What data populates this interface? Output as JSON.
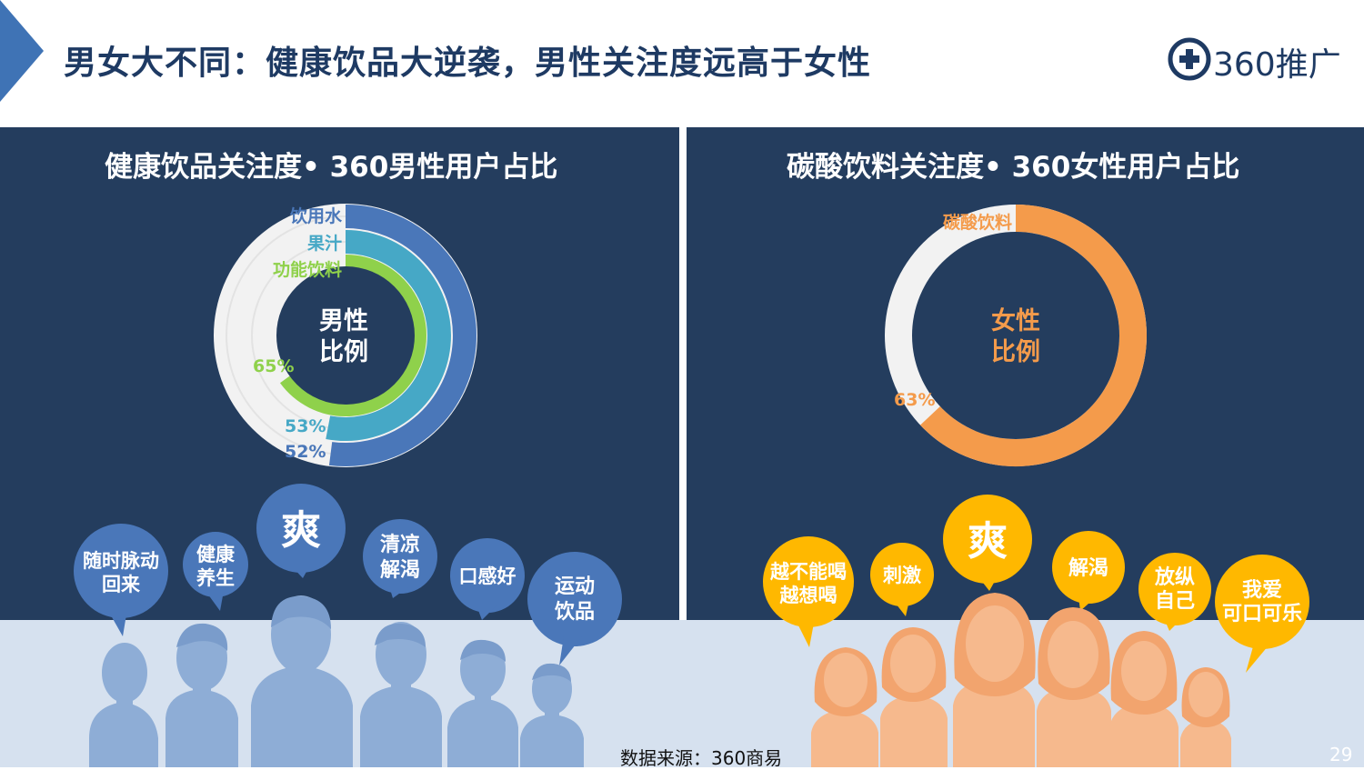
{
  "title": "男女大不同：健康饮品大逆袭，男性关注度远高于女性",
  "logo": {
    "text": "360推广",
    "icon": "plus-in-circle-icon"
  },
  "left_panel": {
    "title": "健康饮品关注度• 360男性用户占比",
    "center_label_line1": "男性",
    "center_label_line2": "比例",
    "rings": [
      {
        "label": "饮用水",
        "value": 52,
        "value_text": "52%",
        "color": "#4a77b9"
      },
      {
        "label": "果汁",
        "value": 53,
        "value_text": "53%",
        "color": "#46a8c6"
      },
      {
        "label": "功能饮料",
        "value": 65,
        "value_text": "65%",
        "color": "#8fd14b"
      }
    ],
    "bubbles": [
      "随时脉动",
      "回来",
      "健康",
      "养生",
      "爽",
      "清凉",
      "解渴",
      "口感好",
      "运动",
      "饮品"
    ]
  },
  "right_panel": {
    "title": "碳酸饮料关注度• 360女性用户占比",
    "center_label_line1": "女性",
    "center_label_line2": "比例",
    "ring": {
      "label": "碳酸饮料",
      "value": 63,
      "value_text": "63%",
      "color": "#f49b4b"
    },
    "bubbles": [
      "越不能喝",
      "越想喝",
      "刺激",
      "爽",
      "解渴",
      "放纵",
      "自己",
      "我爱",
      "可口可乐"
    ]
  },
  "colors": {
    "navy": "#243d5e",
    "track": "#eeeeee",
    "male_bubble": "#4a77b9",
    "female_bubble": "#ffb800",
    "male_figure": "#8eadd6",
    "female_figure": "#f6b98d"
  },
  "footer": {
    "source": "数据来源：360商易",
    "page": "29"
  }
}
